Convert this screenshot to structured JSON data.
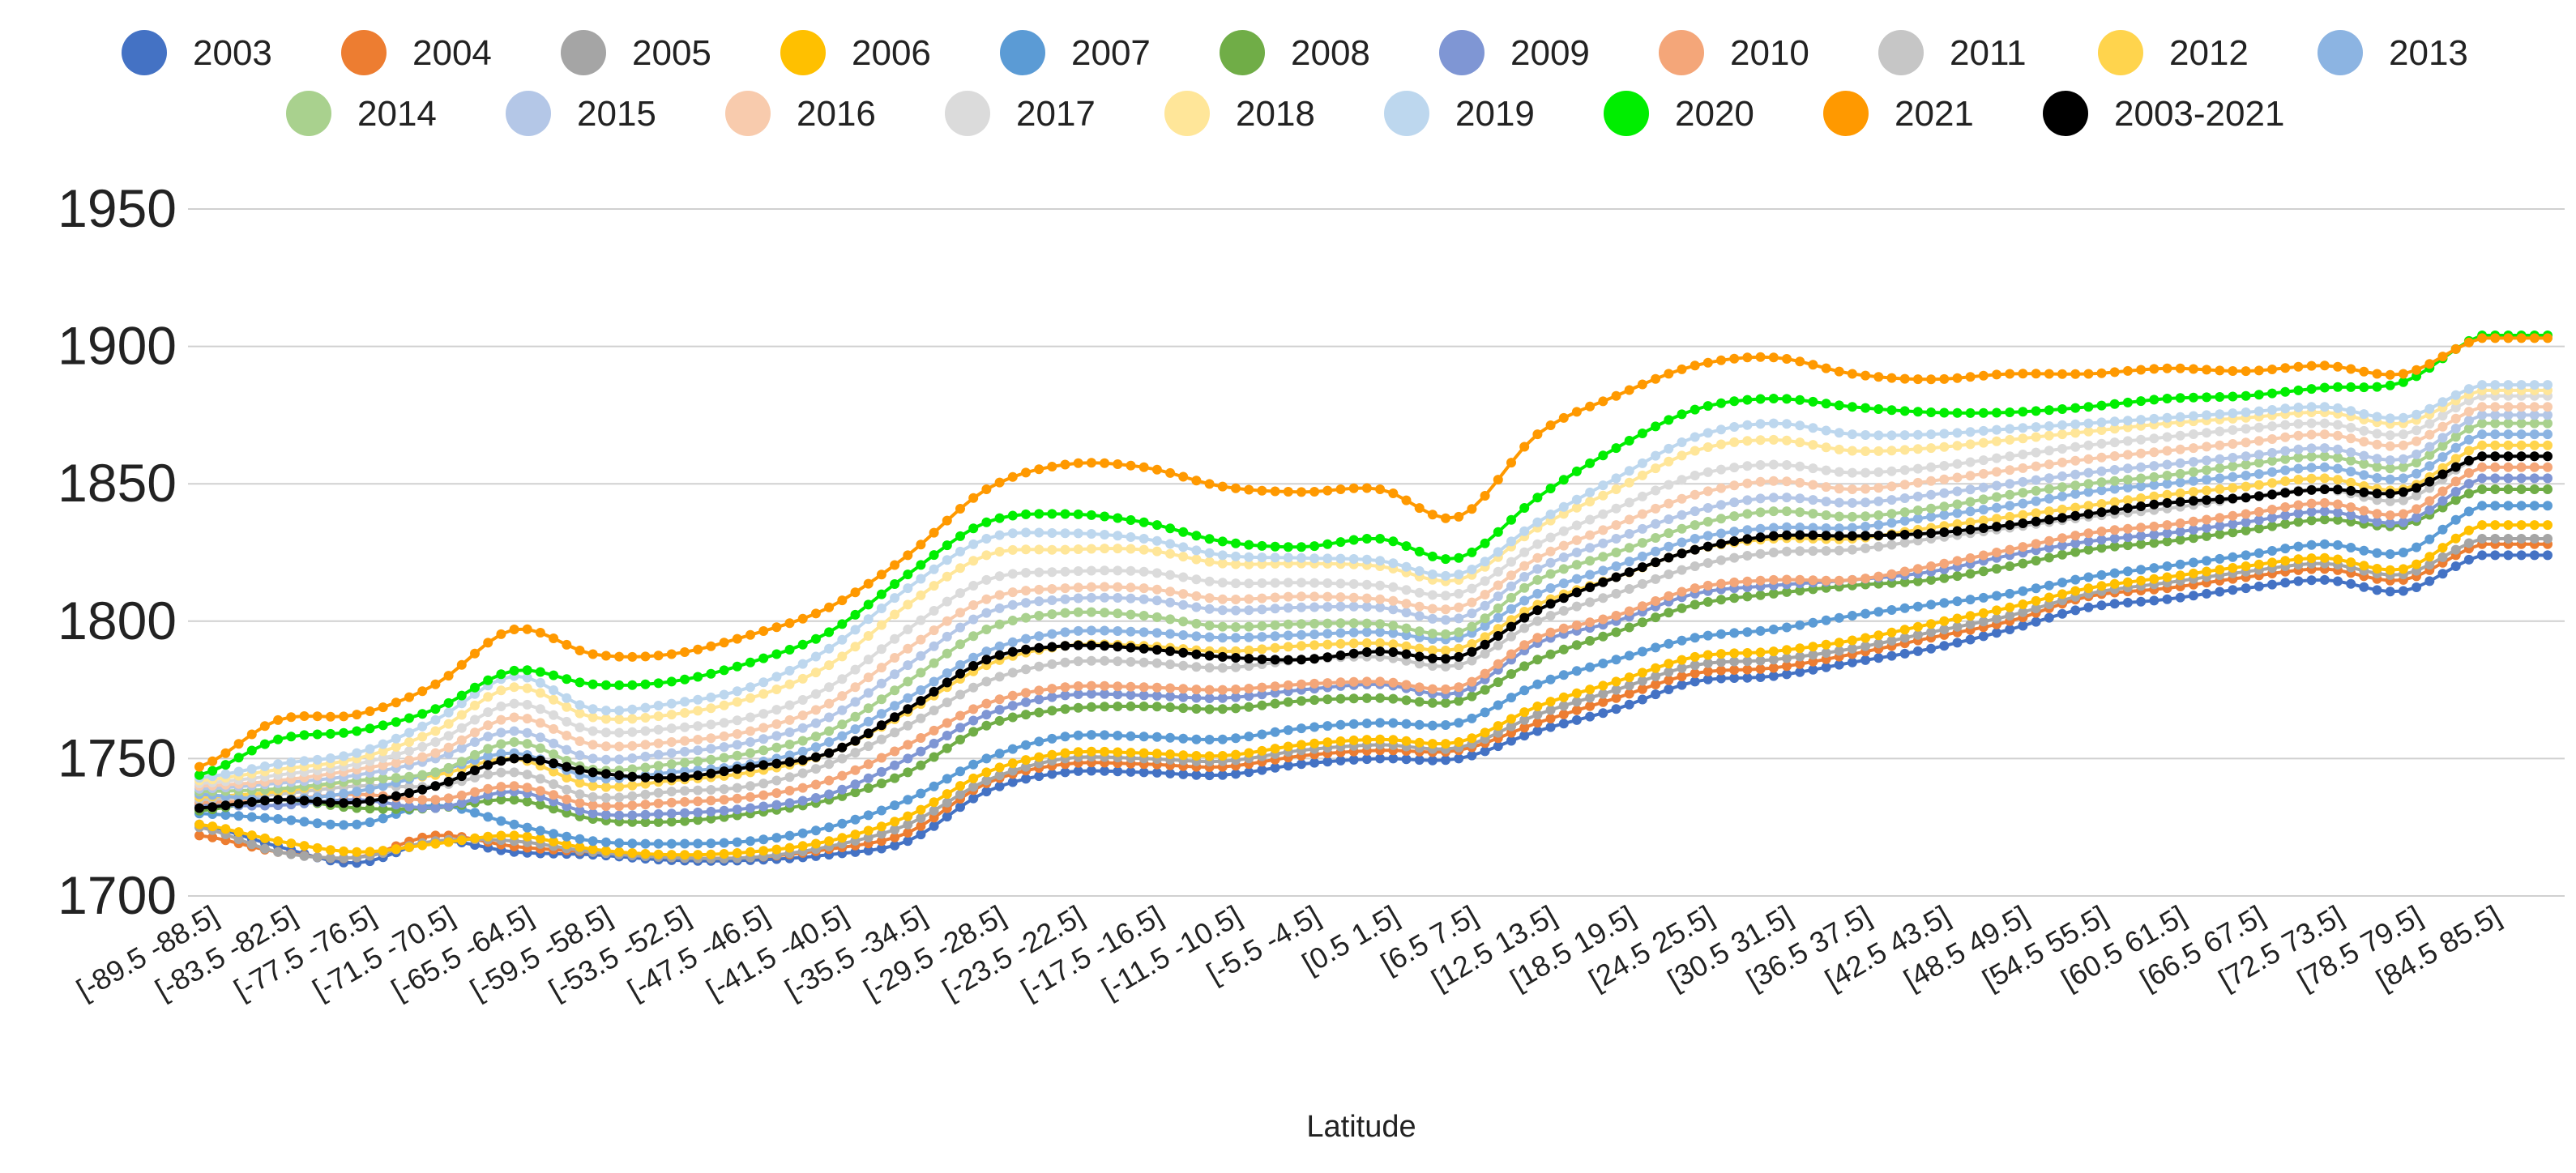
{
  "chart_data": {
    "type": "line",
    "title": "",
    "xlabel": "Latitude",
    "ylabel": "",
    "ylim": [
      1700,
      1950
    ],
    "yticks": [
      1700,
      1750,
      1800,
      1850,
      1900,
      1950
    ],
    "grid": true,
    "legend_position": "top",
    "x_tick_labels": [
      "[-89.5 -88.5]",
      "[-83.5 -82.5]",
      "[-77.5 -76.5]",
      "[-71.5 -70.5]",
      "[-65.5 -64.5]",
      "[-59.5 -58.5]",
      "[-53.5 -52.5]",
      "[-47.5 -46.5]",
      "[-41.5 -40.5]",
      "[-35.5 -34.5]",
      "[-29.5 -28.5]",
      "[-23.5 -22.5]",
      "[-17.5 -16.5]",
      "[-11.5 -10.5]",
      "[-5.5 -4.5]",
      "[0.5 1.5]",
      "[6.5 7.5]",
      "[12.5 13.5]",
      "[18.5 19.5]",
      "[24.5 25.5]",
      "[30.5 31.5]",
      "[36.5 37.5]",
      "[42.5 43.5]",
      "[48.5 49.5]",
      "[54.5 55.5]",
      "[60.5 61.5]",
      "[66.5 67.5]",
      "[72.5 73.5]",
      "[78.5 79.5]",
      "[84.5 85.5]"
    ],
    "x_lat_start": -89.5,
    "x_lat_end": 89.5,
    "x_step": 1,
    "series": [
      {
        "name": "2003",
        "color": "#4472C4",
        "values": [
          1726,
          1718,
          1712,
          1720,
          1716,
          1715,
          1713,
          1713,
          1715,
          1720,
          1738,
          1745,
          1745,
          1744,
          1748,
          1750,
          1750,
          1760,
          1768,
          1778,
          1780,
          1785,
          1790,
          1797,
          1805,
          1808,
          1812,
          1815,
          1811,
          1824
        ]
      },
      {
        "name": "2004",
        "color": "#ED7D31",
        "values": [
          1722,
          1716,
          1714,
          1722,
          1718,
          1716,
          1714,
          1714,
          1717,
          1723,
          1741,
          1748,
          1748,
          1747,
          1751,
          1753,
          1753,
          1763,
          1772,
          1781,
          1783,
          1788,
          1794,
          1800,
          1809,
          1812,
          1816,
          1819,
          1815,
          1828
        ]
      },
      {
        "name": "2005",
        "color": "#A5A5A5",
        "values": [
          1725,
          1716,
          1714,
          1720,
          1720,
          1716,
          1714,
          1714,
          1718,
          1726,
          1742,
          1750,
          1750,
          1749,
          1753,
          1755,
          1754,
          1766,
          1775,
          1784,
          1786,
          1790,
          1796,
          1802,
          1810,
          1814,
          1818,
          1821,
          1817,
          1830
        ]
      },
      {
        "name": "2006",
        "color": "#FFC000",
        "values": [
          1726,
          1720,
          1716,
          1719,
          1722,
          1717,
          1715,
          1716,
          1720,
          1729,
          1745,
          1752,
          1752,
          1751,
          1755,
          1757,
          1756,
          1769,
          1778,
          1787,
          1789,
          1793,
          1799,
          1805,
          1812,
          1816,
          1820,
          1823,
          1819,
          1835
        ]
      },
      {
        "name": "2007",
        "color": "#5B9BD5",
        "values": [
          1730,
          1728,
          1726,
          1733,
          1726,
          1720,
          1719,
          1720,
          1725,
          1735,
          1750,
          1758,
          1758,
          1757,
          1761,
          1763,
          1763,
          1777,
          1786,
          1794,
          1797,
          1802,
          1806,
          1810,
          1816,
          1820,
          1824,
          1828,
          1825,
          1842
        ]
      },
      {
        "name": "2008",
        "color": "#70AD47",
        "values": [
          1731,
          1735,
          1732,
          1732,
          1735,
          1728,
          1727,
          1730,
          1735,
          1745,
          1762,
          1768,
          1769,
          1768,
          1771,
          1772,
          1771,
          1786,
          1796,
          1806,
          1810,
          1813,
          1815,
          1820,
          1826,
          1829,
          1833,
          1837,
          1835,
          1848
        ]
      },
      {
        "name": "2009",
        "color": "#7F96D4",
        "values": [
          1733,
          1733,
          1735,
          1732,
          1738,
          1730,
          1730,
          1732,
          1737,
          1750,
          1766,
          1773,
          1773,
          1772,
          1775,
          1777,
          1774,
          1792,
          1800,
          1810,
          1813,
          1815,
          1818,
          1824,
          1829,
          1832,
          1836,
          1840,
          1836,
          1852
        ]
      },
      {
        "name": "2010",
        "color": "#F4A679",
        "values": [
          1734,
          1735,
          1737,
          1735,
          1740,
          1733,
          1734,
          1736,
          1742,
          1755,
          1770,
          1776,
          1776,
          1775,
          1777,
          1778,
          1776,
          1794,
          1802,
          1812,
          1815,
          1815,
          1820,
          1826,
          1832,
          1835,
          1839,
          1843,
          1839,
          1856
        ]
      },
      {
        "name": "2011",
        "color": "#C6C6C6",
        "values": [
          1735,
          1737,
          1740,
          1740,
          1745,
          1736,
          1738,
          1740,
          1748,
          1762,
          1778,
          1785,
          1785,
          1783,
          1786,
          1787,
          1784,
          1800,
          1810,
          1820,
          1825,
          1826,
          1830,
          1834,
          1838,
          1841,
          1845,
          1848,
          1844,
          1860
        ]
      },
      {
        "name": "2012",
        "color": "#FFD44D",
        "values": [
          1736,
          1738,
          1742,
          1744,
          1750,
          1740,
          1742,
          1745,
          1752,
          1767,
          1784,
          1791,
          1791,
          1789,
          1791,
          1792,
          1790,
          1806,
          1816,
          1826,
          1830,
          1830,
          1834,
          1838,
          1842,
          1846,
          1849,
          1852,
          1848,
          1864
        ]
      },
      {
        "name": "2013",
        "color": "#8CB4E2",
        "values": [
          1737,
          1735,
          1738,
          1745,
          1752,
          1743,
          1745,
          1748,
          1756,
          1772,
          1789,
          1796,
          1796,
          1794,
          1795,
          1796,
          1794,
          1810,
          1820,
          1830,
          1834,
          1834,
          1838,
          1842,
          1847,
          1850,
          1853,
          1856,
          1852,
          1868
        ]
      },
      {
        "name": "2014",
        "color": "#A9D18E",
        "values": [
          1738,
          1739,
          1742,
          1745,
          1756,
          1746,
          1748,
          1752,
          1760,
          1778,
          1797,
          1803,
          1802,
          1798,
          1799,
          1799,
          1796,
          1815,
          1825,
          1835,
          1840,
          1838,
          1841,
          1846,
          1850,
          1853,
          1857,
          1860,
          1856,
          1872
        ]
      },
      {
        "name": "2015",
        "color": "#B4C7E7",
        "values": [
          1739,
          1741,
          1744,
          1750,
          1760,
          1750,
          1752,
          1756,
          1765,
          1784,
          1803,
          1808,
          1808,
          1804,
          1805,
          1805,
          1801,
          1819,
          1830,
          1840,
          1845,
          1843,
          1846,
          1850,
          1854,
          1857,
          1860,
          1863,
          1859,
          1875
        ]
      },
      {
        "name": "2016",
        "color": "#F8CBAD",
        "values": [
          1740,
          1742,
          1746,
          1752,
          1765,
          1755,
          1756,
          1760,
          1770,
          1790,
          1808,
          1812,
          1812,
          1808,
          1809,
          1808,
          1805,
          1823,
          1835,
          1846,
          1851,
          1848,
          1851,
          1855,
          1859,
          1862,
          1865,
          1868,
          1864,
          1878
        ]
      },
      {
        "name": "2017",
        "color": "#DBDBDB",
        "values": [
          1741,
          1744,
          1748,
          1756,
          1770,
          1760,
          1761,
          1765,
          1776,
          1797,
          1815,
          1818,
          1818,
          1814,
          1814,
          1813,
          1810,
          1828,
          1841,
          1853,
          1857,
          1854,
          1856,
          1860,
          1864,
          1867,
          1870,
          1872,
          1868,
          1882
        ]
      },
      {
        "name": "2018",
        "color": "#FFE699",
        "values": [
          1742,
          1746,
          1750,
          1760,
          1776,
          1765,
          1766,
          1772,
          1784,
          1806,
          1824,
          1826,
          1826,
          1821,
          1821,
          1820,
          1815,
          1834,
          1848,
          1862,
          1866,
          1862,
          1863,
          1866,
          1869,
          1872,
          1874,
          1876,
          1872,
          1884
        ]
      },
      {
        "name": "2019",
        "color": "#BDD7EE",
        "values": [
          1743,
          1748,
          1752,
          1764,
          1780,
          1768,
          1770,
          1776,
          1790,
          1812,
          1830,
          1832,
          1830,
          1824,
          1823,
          1822,
          1817,
          1836,
          1852,
          1867,
          1872,
          1868,
          1868,
          1870,
          1872,
          1874,
          1876,
          1878,
          1874,
          1886
        ]
      },
      {
        "name": "2020",
        "color": "#00EE00",
        "values": [
          1744,
          1757,
          1760,
          1768,
          1782,
          1777,
          1778,
          1785,
          1796,
          1817,
          1836,
          1839,
          1836,
          1829,
          1827,
          1830,
          1823,
          1845,
          1863,
          1877,
          1881,
          1878,
          1876,
          1876,
          1878,
          1881,
          1882,
          1885,
          1887,
          1904
        ]
      },
      {
        "name": "2021",
        "color": "#FF9900",
        "values": [
          1747,
          1764,
          1766,
          1777,
          1797,
          1788,
          1788,
          1795,
          1805,
          1824,
          1848,
          1857,
          1856,
          1849,
          1847,
          1848,
          1838,
          1868,
          1882,
          1893,
          1896,
          1890,
          1888,
          1890,
          1890,
          1892,
          1891,
          1893,
          1890,
          1903
        ]
      },
      {
        "name": "2003-2021",
        "color": "#000000",
        "values": [
          1732,
          1735,
          1734,
          1740,
          1750,
          1745,
          1743,
          1747,
          1752,
          1768,
          1786,
          1791,
          1790,
          1787,
          1786,
          1789,
          1787,
          1804,
          1816,
          1826,
          1831,
          1831,
          1832,
          1835,
          1839,
          1843,
          1845,
          1848,
          1847,
          1860
        ]
      }
    ]
  }
}
